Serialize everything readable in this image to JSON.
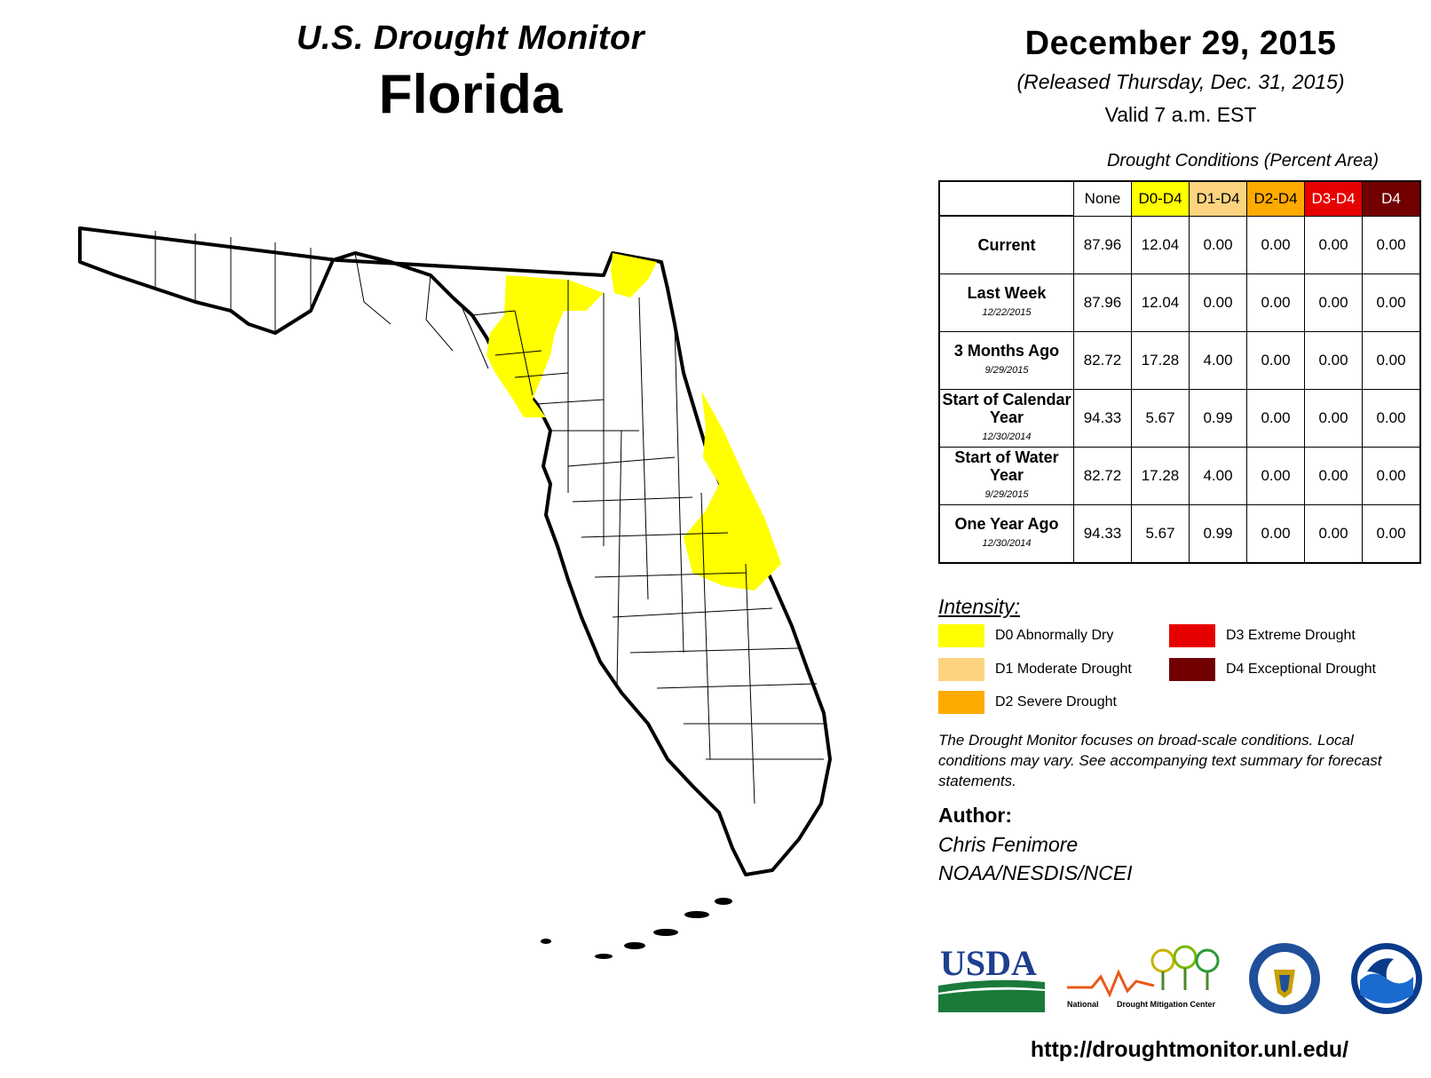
{
  "header": {
    "subtitle": "U.S. Drought Monitor",
    "state": "Florida",
    "date": "December 29, 2015",
    "released": "(Released Thursday, Dec. 31, 2015)",
    "valid": "Valid 7 a.m. EST"
  },
  "table": {
    "caption": "Drought Conditions (Percent Area)",
    "columns": [
      {
        "label": "None",
        "color": "#ffffff",
        "text_color": "#000000"
      },
      {
        "label": "D0-D4",
        "color": "#ffff00",
        "text_color": "#000000"
      },
      {
        "label": "D1-D4",
        "color": "#fcd37f",
        "text_color": "#000000"
      },
      {
        "label": "D2-D4",
        "color": "#ffaa00",
        "text_color": "#000000"
      },
      {
        "label": "D3-D4",
        "color": "#e60000",
        "text_color": "#ffffff"
      },
      {
        "label": "D4",
        "color": "#730000",
        "text_color": "#ffffff"
      }
    ],
    "rows": [
      {
        "label": "Current",
        "date": "",
        "values": [
          "87.96",
          "12.04",
          "0.00",
          "0.00",
          "0.00",
          "0.00"
        ]
      },
      {
        "label": "Last Week",
        "date": "12/22/2015",
        "values": [
          "87.96",
          "12.04",
          "0.00",
          "0.00",
          "0.00",
          "0.00"
        ]
      },
      {
        "label": "3 Months Ago",
        "date": "9/29/2015",
        "values": [
          "82.72",
          "17.28",
          "4.00",
          "0.00",
          "0.00",
          "0.00"
        ]
      },
      {
        "label": "Start of Calendar Year",
        "date": "12/30/2014",
        "values": [
          "94.33",
          "5.67",
          "0.99",
          "0.00",
          "0.00",
          "0.00"
        ]
      },
      {
        "label": "Start of Water Year",
        "date": "9/29/2015",
        "values": [
          "82.72",
          "17.28",
          "4.00",
          "0.00",
          "0.00",
          "0.00"
        ]
      },
      {
        "label": "One Year Ago",
        "date": "12/30/2014",
        "values": [
          "94.33",
          "5.67",
          "0.99",
          "0.00",
          "0.00",
          "0.00"
        ]
      }
    ]
  },
  "legend": {
    "title": "Intensity:",
    "items": [
      {
        "label": "D0 Abnormally Dry",
        "color": "#ffff00"
      },
      {
        "label": "D1 Moderate Drought",
        "color": "#fcd37f"
      },
      {
        "label": "D2 Severe Drought",
        "color": "#ffaa00"
      },
      {
        "label": "D3 Extreme Drought",
        "color": "#e60000"
      },
      {
        "label": "D4 Exceptional Drought",
        "color": "#730000"
      }
    ]
  },
  "note": "The Drought Monitor focuses on broad-scale conditions. Local conditions may vary. See accompanying text summary for forecast statements.",
  "author": {
    "label": "Author:",
    "name": "Chris Fenimore",
    "org": "NOAA/NESDIS/NCEI"
  },
  "logos": {
    "usda": "USDA",
    "ndmc_left": "National",
    "ndmc_right": "Drought Mitigation Center"
  },
  "url": "http://droughtmonitor.unl.edu/",
  "map": {
    "drought_color": "#ffff00",
    "outline_color": "#000000",
    "icons": [
      "florida-outline-icon",
      "county-lines-icon",
      "keys-islands-icon"
    ]
  }
}
